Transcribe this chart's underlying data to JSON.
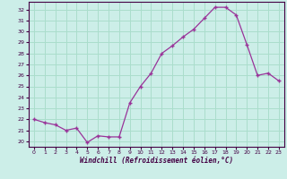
{
  "x": [
    0,
    1,
    2,
    3,
    4,
    5,
    6,
    7,
    8,
    9,
    10,
    11,
    12,
    13,
    14,
    15,
    16,
    17,
    18,
    19,
    20,
    21,
    22,
    23
  ],
  "y": [
    22,
    21.7,
    21.5,
    21.0,
    21.2,
    19.9,
    20.5,
    20.4,
    20.4,
    23.5,
    25.0,
    26.2,
    28.0,
    28.7,
    29.5,
    30.2,
    31.2,
    32.2,
    32.2,
    31.5,
    28.8,
    26.0,
    26.2,
    25.5
  ],
  "xlabel": "Windchill (Refroidissement éolien,°C)",
  "line_color": "#993399",
  "marker": "+",
  "background_color": "#cceee8",
  "grid_color": "#aaddcc",
  "ylim": [
    19.5,
    32.7
  ],
  "xlim": [
    -0.5,
    23.5
  ],
  "yticks": [
    20,
    21,
    22,
    23,
    24,
    25,
    26,
    27,
    28,
    29,
    30,
    31,
    32
  ],
  "xticks": [
    0,
    1,
    2,
    3,
    4,
    5,
    6,
    7,
    8,
    9,
    10,
    11,
    12,
    13,
    14,
    15,
    16,
    17,
    18,
    19,
    20,
    21,
    22,
    23
  ],
  "xlabel_color": "#440044",
  "tick_color": "#440044",
  "spine_color": "#440044"
}
